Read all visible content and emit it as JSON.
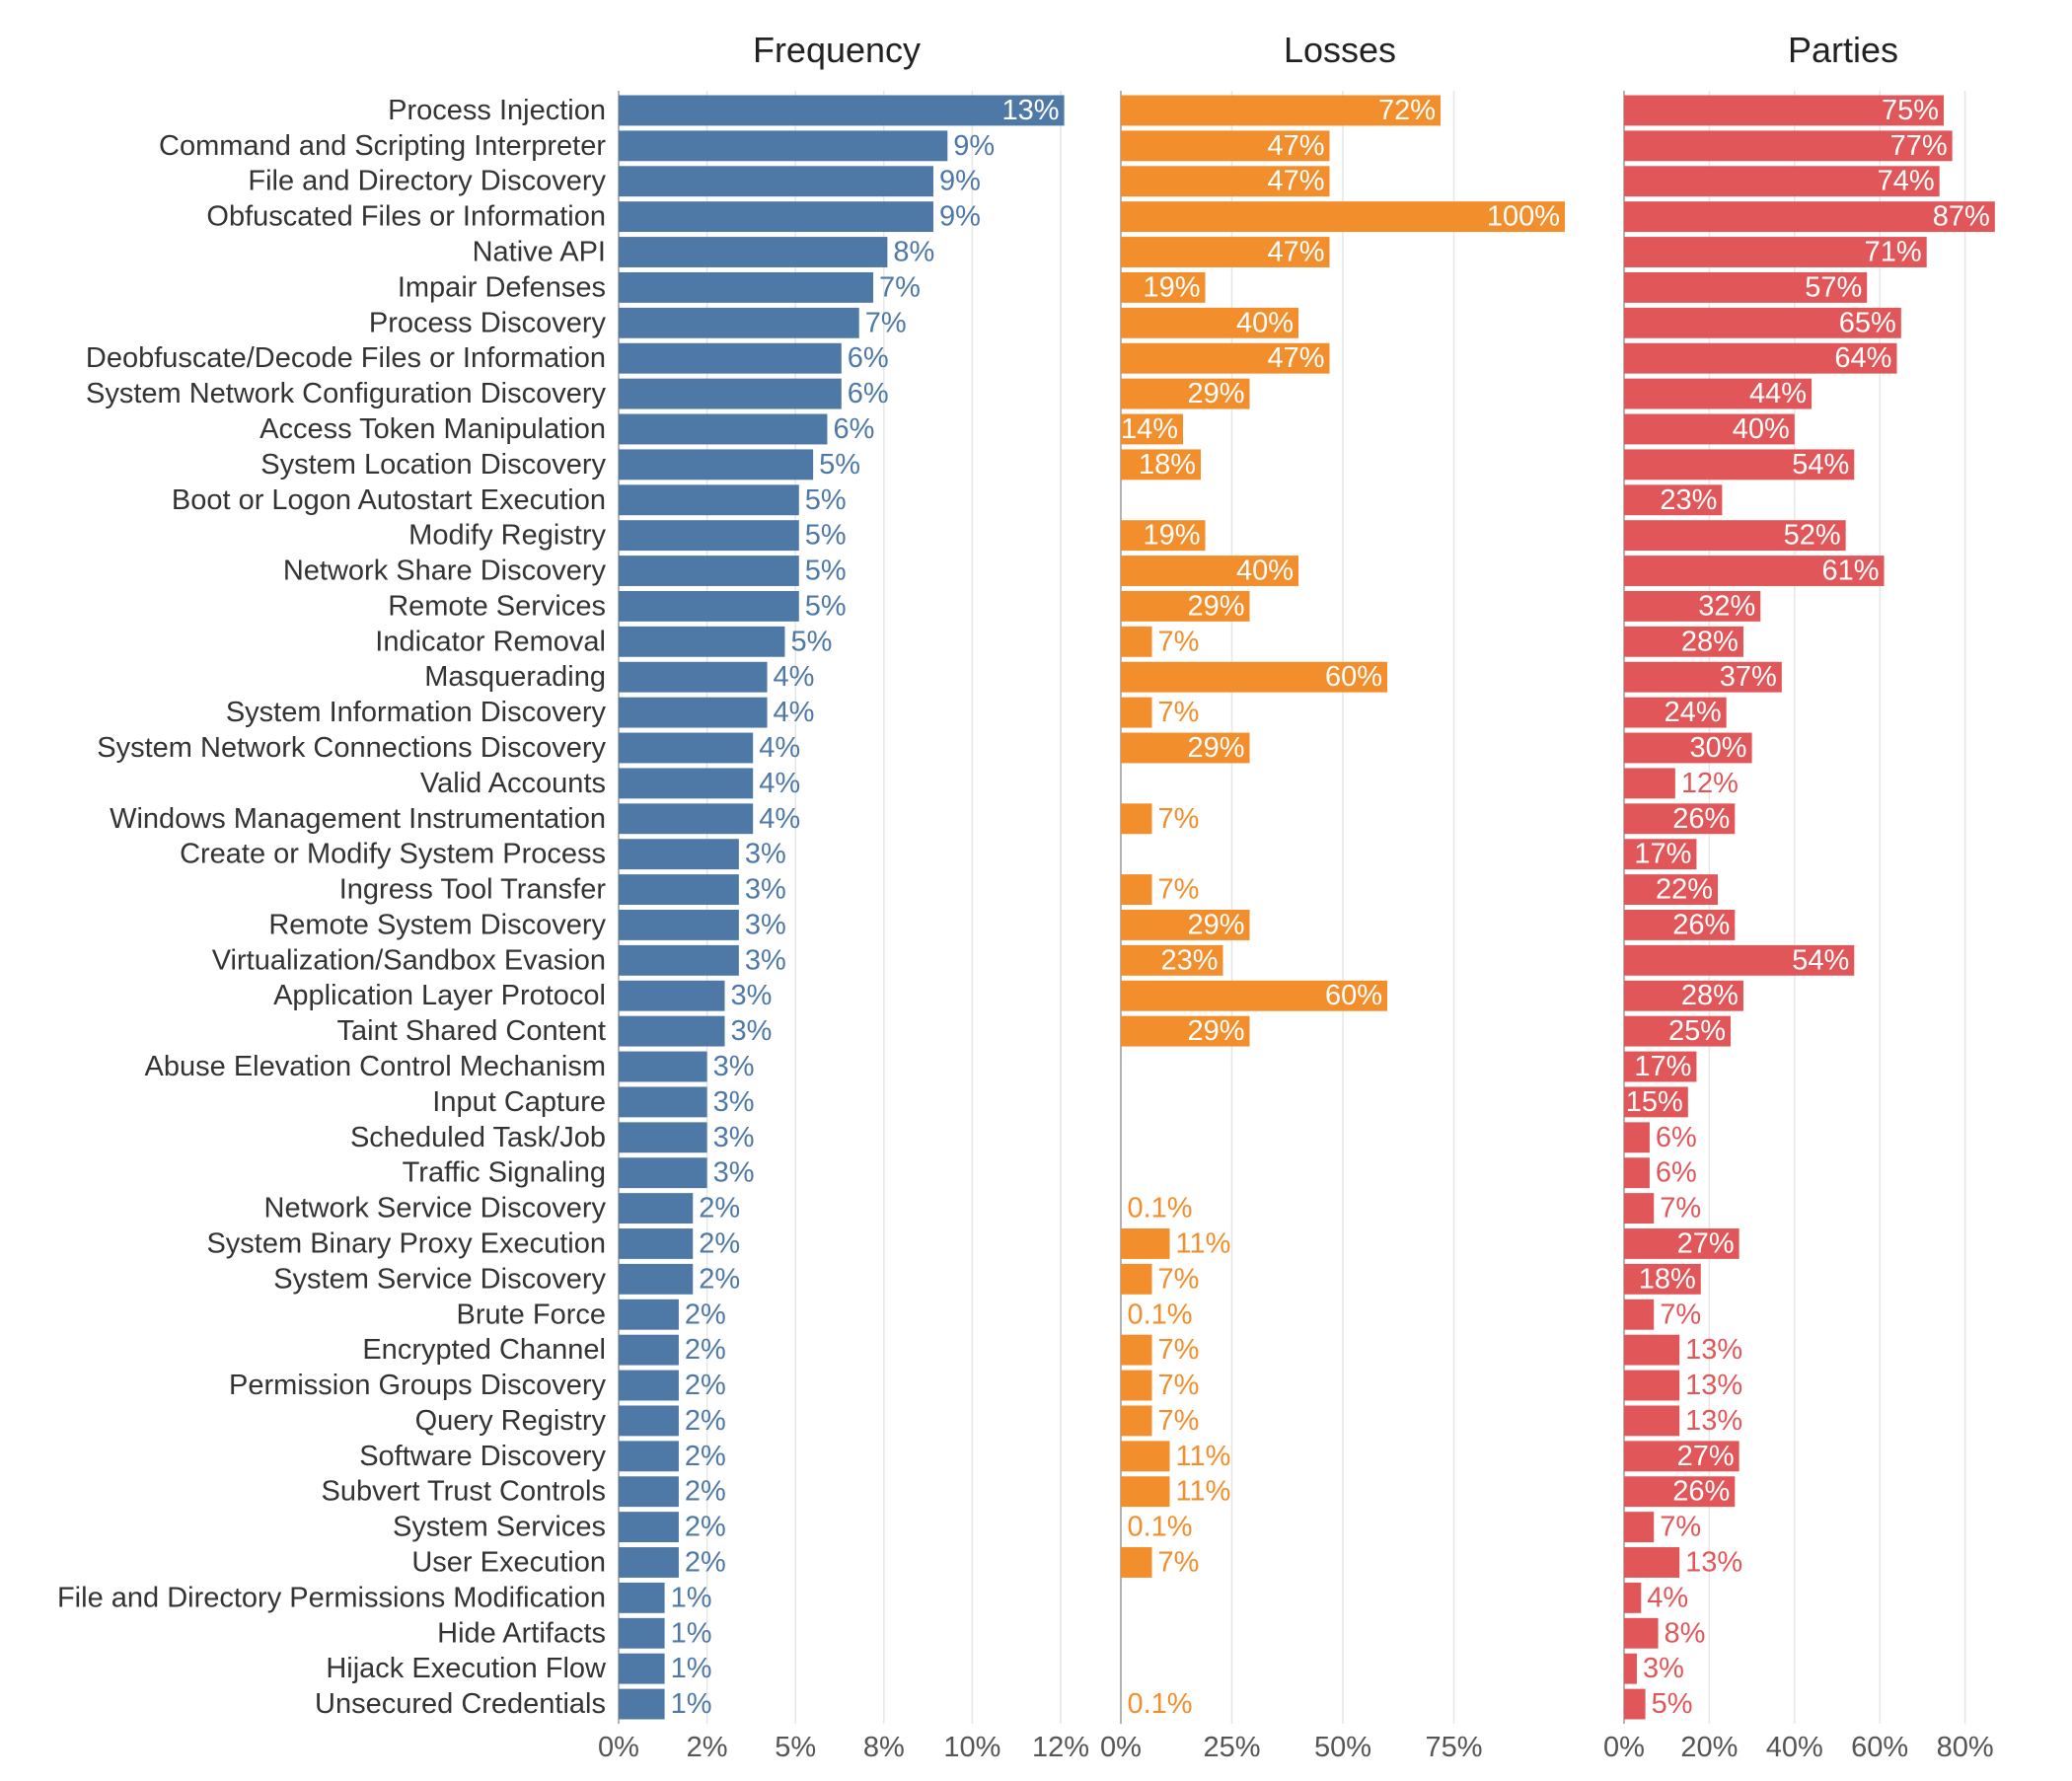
{
  "chart_data": {
    "type": "bar",
    "orientation": "horizontal",
    "layout": "small-multiples",
    "grid": true,
    "categories": [
      "Process Injection",
      "Command and Scripting Interpreter",
      "File and Directory Discovery",
      "Obfuscated Files or Information",
      "Native API",
      "Impair Defenses",
      "Process Discovery",
      "Deobfuscate/Decode Files or Information",
      "System Network Configuration Discovery",
      "Access Token Manipulation",
      "System Location Discovery",
      "Boot or Logon Autostart Execution",
      "Modify Registry",
      "Network Share Discovery",
      "Remote Services",
      "Indicator Removal",
      "Masquerading",
      "System Information Discovery",
      "System Network Connections Discovery",
      "Valid Accounts",
      "Windows Management Instrumentation",
      "Create or Modify System Process",
      "Ingress Tool Transfer",
      "Remote System Discovery",
      "Virtualization/Sandbox Evasion",
      "Application Layer Protocol",
      "Taint Shared Content",
      "Abuse Elevation Control Mechanism",
      "Input Capture",
      "Scheduled Task/Job",
      "Traffic Signaling",
      "Network Service Discovery",
      "System Binary Proxy Execution",
      "System Service Discovery",
      "Brute Force",
      "Encrypted Channel",
      "Permission Groups Discovery",
      "Query Registry",
      "Software Discovery",
      "Subvert Trust Controls",
      "System Services",
      "User Execution",
      "File and Directory Permissions Modification",
      "Hide Artifacts",
      "Hijack Execution Flow",
      "Unsecured Credentials"
    ],
    "panels": [
      {
        "title": "Frequency",
        "color": "#4e79a7",
        "xlim": [
          0,
          12.5
        ],
        "ticks": [
          0,
          2.5,
          5,
          7.5,
          10,
          12.5
        ],
        "tick_labels": [
          "0%",
          "2%",
          "5%",
          "8%",
          "10%",
          "12%"
        ],
        "values": [
          12.6,
          9.3,
          8.9,
          8.9,
          7.6,
          7.2,
          6.8,
          6.3,
          6.3,
          5.9,
          5.5,
          5.1,
          5.1,
          5.1,
          5.1,
          4.7,
          4.2,
          4.2,
          3.8,
          3.8,
          3.8,
          3.4,
          3.4,
          3.4,
          3.4,
          3.0,
          3.0,
          2.5,
          2.5,
          2.5,
          2.5,
          2.1,
          2.1,
          2.1,
          1.7,
          1.7,
          1.7,
          1.7,
          1.7,
          1.7,
          1.7,
          1.7,
          1.3,
          1.3,
          1.3,
          1.3
        ],
        "labels": [
          "13%",
          "9%",
          "9%",
          "9%",
          "8%",
          "7%",
          "7%",
          "6%",
          "6%",
          "6%",
          "5%",
          "5%",
          "5%",
          "5%",
          "5%",
          "5%",
          "4%",
          "4%",
          "4%",
          "4%",
          "4%",
          "3%",
          "3%",
          "3%",
          "3%",
          "3%",
          "3%",
          "3%",
          "3%",
          "3%",
          "3%",
          "2%",
          "2%",
          "2%",
          "2%",
          "2%",
          "2%",
          "2%",
          "2%",
          "2%",
          "2%",
          "2%",
          "1%",
          "1%",
          "1%",
          "1%"
        ]
      },
      {
        "title": "Losses",
        "color": "#f28e2b",
        "xlim": [
          0,
          100
        ],
        "ticks": [
          0,
          25,
          50,
          75
        ],
        "tick_labels": [
          "0%",
          "25%",
          "50%",
          "75%"
        ],
        "values": [
          72,
          47,
          47,
          100,
          47,
          19,
          40,
          47,
          29,
          14,
          18,
          null,
          19,
          40,
          29,
          7,
          60,
          7,
          29,
          null,
          7,
          null,
          7,
          29,
          23,
          60,
          29,
          null,
          null,
          null,
          null,
          0.1,
          11,
          7,
          0.1,
          7,
          7,
          7,
          11,
          11,
          0.1,
          7,
          null,
          null,
          null,
          0.1
        ],
        "labels": [
          "72%",
          "47%",
          "47%",
          "100%",
          "47%",
          "19%",
          "40%",
          "47%",
          "29%",
          "14%",
          "18%",
          "",
          "19%",
          "40%",
          "29%",
          "7%",
          "60%",
          "7%",
          "29%",
          "",
          "7%",
          "",
          "7%",
          "29%",
          "23%",
          "60%",
          "29%",
          "",
          "",
          "",
          "",
          "0.1%",
          "11%",
          "7%",
          "0.1%",
          "7%",
          "7%",
          "7%",
          "11%",
          "11%",
          "0.1%",
          "7%",
          "",
          "",
          "",
          "0.1%"
        ]
      },
      {
        "title": "Parties",
        "color": "#e15759",
        "xlim": [
          0,
          87
        ],
        "ticks": [
          0,
          20,
          40,
          60,
          80
        ],
        "tick_labels": [
          "0%",
          "20%",
          "40%",
          "60%",
          "80%"
        ],
        "values": [
          75,
          77,
          74,
          87,
          71,
          57,
          65,
          64,
          44,
          40,
          54,
          23,
          52,
          61,
          32,
          28,
          37,
          24,
          30,
          12,
          26,
          17,
          22,
          26,
          54,
          28,
          25,
          17,
          15,
          6,
          6,
          7,
          27,
          18,
          7,
          13,
          13,
          13,
          27,
          26,
          7,
          13,
          4,
          8,
          3,
          5
        ],
        "labels": [
          "75%",
          "77%",
          "74%",
          "87%",
          "71%",
          "57%",
          "65%",
          "64%",
          "44%",
          "40%",
          "54%",
          "23%",
          "52%",
          "61%",
          "32%",
          "28%",
          "37%",
          "24%",
          "30%",
          "12%",
          "26%",
          "17%",
          "22%",
          "26%",
          "54%",
          "28%",
          "25%",
          "17%",
          "15%",
          "6%",
          "6%",
          "7%",
          "27%",
          "18%",
          "7%",
          "13%",
          "13%",
          "13%",
          "27%",
          "26%",
          "7%",
          "13%",
          "4%",
          "8%",
          "3%",
          "5%"
        ]
      }
    ]
  }
}
